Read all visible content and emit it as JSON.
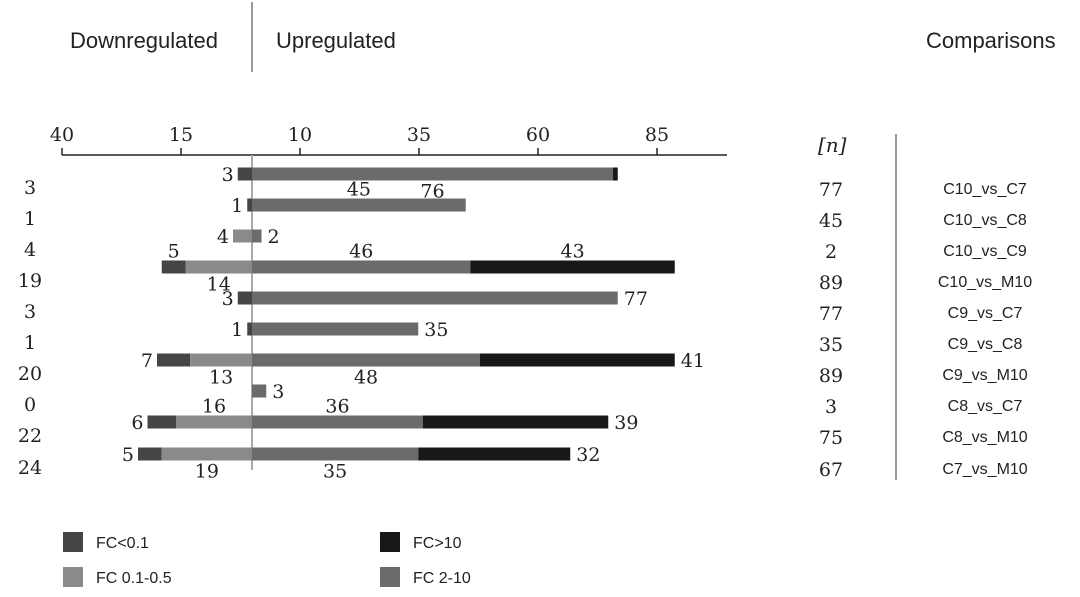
{
  "header": {
    "down_label": "Downregulated",
    "up_label": "Upregulated",
    "comparisons_label": "Comparisons",
    "n_label": "[n]"
  },
  "legend": [
    {
      "name": "FC<0.1",
      "color": "#454545"
    },
    {
      "name": "FC>10",
      "color": "#181818"
    },
    {
      "name": "FC 0.1-0.5",
      "color": "#8a8a8a"
    },
    {
      "name": "FC 2-10",
      "color": "#6b6b6b"
    }
  ],
  "chart_data": {
    "type": "bar",
    "orientation": "horizontal",
    "stacked": true,
    "axis_ticks": [
      "40",
      "15",
      "10",
      "35",
      "60",
      "85"
    ],
    "categories": [
      "C10_vs_C7",
      "C10_vs_C8",
      "C10_vs_C9",
      "C10_vs_M10",
      "C9_vs_C7",
      "C9_vs_C8",
      "C9_vs_M10",
      "C8_vs_C7",
      "C8_vs_M10",
      "C7_vs_M10"
    ],
    "down_totals": [
      3,
      1,
      4,
      19,
      3,
      1,
      20,
      0,
      22,
      24
    ],
    "up_totals": [
      77,
      45,
      2,
      89,
      77,
      35,
      89,
      3,
      75,
      67
    ],
    "series": [
      {
        "name": "FC<0.1",
        "color": "#454545",
        "values": [
          3,
          1,
          0,
          5,
          3,
          1,
          7,
          0,
          6,
          5
        ]
      },
      {
        "name": "FC 0.1-0.5",
        "color": "#8a8a8a",
        "values": [
          0,
          0,
          4,
          14,
          0,
          0,
          13,
          0,
          16,
          19
        ]
      },
      {
        "name": "FC 2-10",
        "color": "#6b6b6b",
        "values": [
          76,
          45,
          2,
          46,
          77,
          35,
          48,
          3,
          36,
          35
        ]
      },
      {
        "name": "FC>10",
        "color": "#181818",
        "values": [
          1,
          0,
          0,
          43,
          0,
          0,
          41,
          0,
          39,
          32
        ]
      }
    ]
  }
}
